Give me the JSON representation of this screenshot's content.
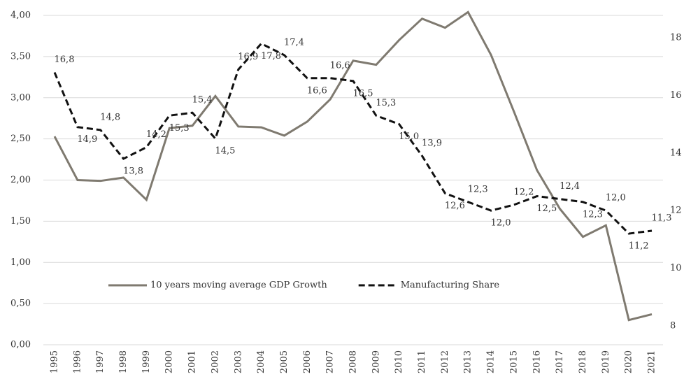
{
  "chart_data": {
    "type": "line",
    "categories": [
      "1995",
      "1996",
      "1997",
      "1998",
      "1999",
      "2000",
      "2001",
      "2002",
      "2003",
      "2004",
      "2005",
      "2006",
      "2007",
      "2008",
      "2009",
      "2010",
      "2011",
      "2012",
      "2013",
      "2014",
      "2015",
      "2016",
      "2017",
      "2018",
      "2019",
      "2020",
      "2021"
    ],
    "series": [
      {
        "name": "10 years moving average GDP Growth",
        "color": "#7f7a70",
        "dash": false,
        "values": [
          2.53,
          2.0,
          1.99,
          2.03,
          1.76,
          2.63,
          2.66,
          3.02,
          2.65,
          2.64,
          2.54,
          2.71,
          2.98,
          3.45,
          3.4,
          3.7,
          3.96,
          3.85,
          4.04,
          3.52,
          2.83,
          2.12,
          1.65,
          1.31,
          1.45,
          0.3,
          0.37
        ]
      },
      {
        "name": "Manufacturing Share",
        "color": "#111111",
        "dash": true,
        "axis": "y2",
        "values": [
          16.8,
          14.9,
          14.8,
          13.8,
          14.2,
          15.3,
          15.4,
          14.5,
          16.9,
          17.8,
          17.4,
          16.6,
          16.6,
          16.5,
          15.3,
          15.0,
          13.9,
          12.6,
          12.3,
          12.0,
          12.2,
          12.5,
          12.4,
          12.3,
          12.0,
          11.2,
          11.3
        ],
        "value_labels": [
          "16,8",
          "14,9",
          "14,8",
          "13,8",
          "14,2",
          "15,3",
          "15,4",
          "14,5",
          "16,9",
          "17,8",
          "17,4",
          "16,6",
          "16,6",
          "16,5",
          "15,3",
          "15,0",
          "13,9",
          "12,6",
          "12,3",
          "12,0",
          "12,2",
          "12,5",
          "12,4",
          "12,3",
          "12,0",
          "11,2",
          "11,3"
        ]
      }
    ],
    "ylim": [
      0,
      4
    ],
    "yticks": [
      {
        "value": 0,
        "label": "0,00"
      },
      {
        "value": 0.5,
        "label": "0,50"
      },
      {
        "value": 1,
        "label": "1,00"
      },
      {
        "value": 1.5,
        "label": "1,50"
      },
      {
        "value": 2,
        "label": "2,00"
      },
      {
        "value": 2.5,
        "label": "2,50"
      },
      {
        "value": 3,
        "label": "3,00"
      },
      {
        "value": 3.5,
        "label": "3,50"
      },
      {
        "value": 4,
        "label": "4,00"
      }
    ],
    "y2lim": [
      7.34,
      18.78
    ],
    "y2ticks": [
      8,
      10,
      12,
      14,
      16,
      18
    ],
    "grid": true
  }
}
